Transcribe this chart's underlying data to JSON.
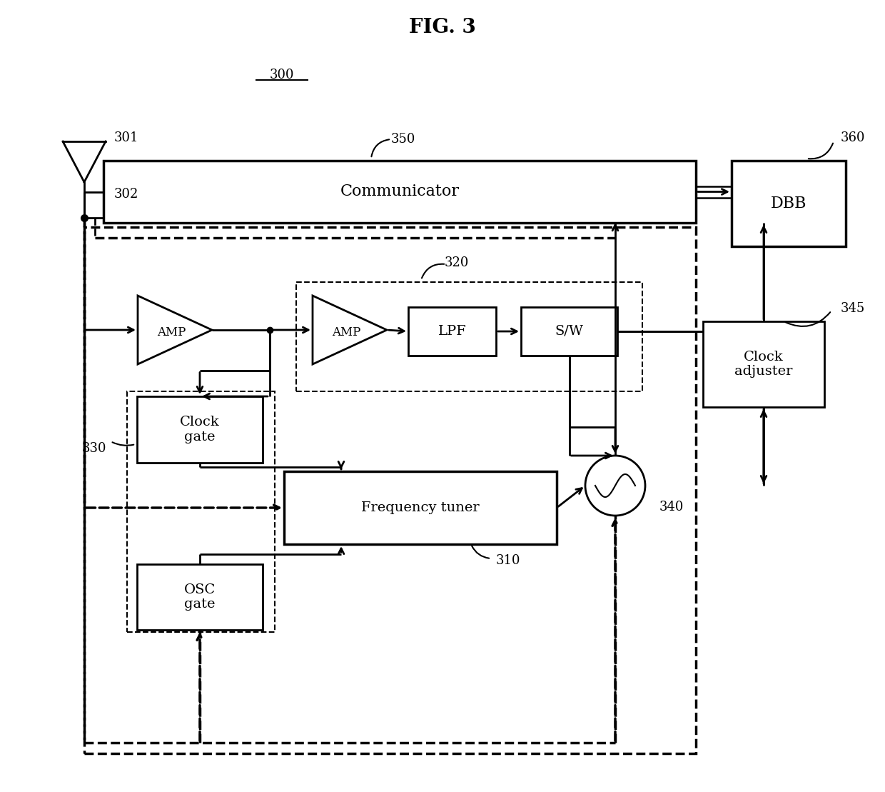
{
  "title": "FIG. 3",
  "label_300": "300",
  "label_301": "301",
  "label_302": "302",
  "label_310": "310",
  "label_320": "320",
  "label_330": "330",
  "label_340": "340",
  "label_345": "345",
  "label_350": "350",
  "label_360": "360",
  "block_communicator": "Communicator",
  "block_dbb": "DBB",
  "block_amp1": "AMP",
  "block_amp2": "AMP",
  "block_lpf": "LPF",
  "block_sw": "S/W",
  "block_clock_gate": "Clock\ngate",
  "block_freq_tuner": "Frequency tuner",
  "block_osc_gate": "OSC\ngate",
  "block_clock_adjuster": "Clock\nadjuster",
  "bg_color": "#ffffff"
}
